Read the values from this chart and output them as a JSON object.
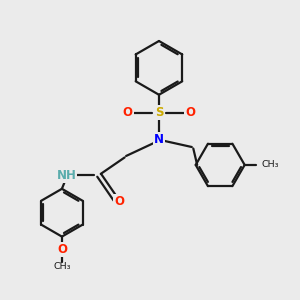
{
  "bg_color": "#ebebeb",
  "bond_color": "#1a1a1a",
  "bond_width": 1.6,
  "N_color": "#0000ff",
  "O_color": "#ff2200",
  "S_color": "#ccaa00",
  "NH_color": "#5aacac",
  "font_size_atom": 8.5,
  "fig_w": 3.0,
  "fig_h": 3.0,
  "dpi": 100,
  "xlim": [
    0,
    10
  ],
  "ylim": [
    0,
    10
  ]
}
